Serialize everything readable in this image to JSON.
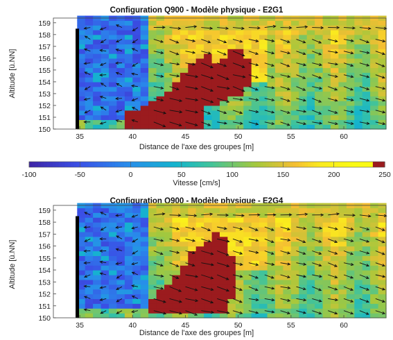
{
  "chart_data": [
    {
      "type": "heatmap",
      "title": "Configuration Q900 - Modèle physique - E2G1",
      "xlabel": "Distance de l'axe des groupes [m]",
      "ylabel": "Altitude [ü.NN]",
      "xlim": [
        32.5,
        64
      ],
      "ylim": [
        150,
        159.4
      ],
      "xticks": [
        35,
        40,
        45,
        50,
        55,
        60
      ],
      "yticks": [
        150,
        151,
        152,
        153,
        154,
        155,
        156,
        157,
        158,
        159
      ],
      "field": "velocity magnitude with flow-direction arrows",
      "wall_x": 34.8,
      "recirculation_zone": {
        "x": [
          35,
          41
        ],
        "y": [
          150,
          159
        ],
        "velocity_range_cm_s": [
          -100,
          0
        ]
      },
      "jet_core": {
        "velocity_cm_s": 250,
        "upper_boundary": [
          [
            39.5,
            150
          ],
          [
            39.5,
            151.5
          ],
          [
            41,
            152
          ],
          [
            43,
            153
          ],
          [
            45,
            154.8
          ],
          [
            46,
            156
          ],
          [
            47,
            156.5
          ],
          [
            48,
            155.5
          ],
          [
            49,
            156.5
          ],
          [
            50,
            157
          ],
          [
            51,
            156
          ],
          [
            51,
            154
          ],
          [
            50.5,
            153
          ],
          [
            49,
            152.5
          ],
          [
            48,
            152
          ],
          [
            46.5,
            152
          ],
          [
            46.5,
            150
          ]
        ]
      },
      "surface_layer_velocity_cm_s": 150,
      "lower_field_velocity_cm_s": 80
    },
    {
      "type": "heatmap",
      "title": "Configuration Q900 - Modèle physique - E2G4",
      "xlabel": "Distance de l'axe des groupes [m]",
      "ylabel": "Altitude [ü.NN]",
      "xlim": [
        32.5,
        64
      ],
      "ylim": [
        150,
        159.4
      ],
      "xticks": [
        35,
        40,
        45,
        50,
        55,
        60
      ],
      "yticks": [
        150,
        151,
        152,
        153,
        154,
        155,
        156,
        157,
        158,
        159
      ],
      "field": "velocity magnitude with flow-direction arrows",
      "wall_x": 34.8,
      "recirculation_zone": {
        "x": [
          35,
          41
        ],
        "y": [
          150,
          159
        ],
        "velocity_range_cm_s": [
          -100,
          0
        ]
      },
      "jet_core": {
        "velocity_cm_s": 250,
        "upper_boundary": [
          [
            41.5,
            150.8
          ],
          [
            42,
            151.8
          ],
          [
            43.5,
            153
          ],
          [
            45,
            154.5
          ],
          [
            46,
            156
          ],
          [
            47,
            156.2
          ],
          [
            48,
            157.5
          ],
          [
            49,
            156.5
          ],
          [
            49.5,
            155
          ],
          [
            49.5,
            152
          ],
          [
            49,
            150.5
          ],
          [
            42,
            150.5
          ]
        ]
      },
      "surface_layer_velocity_cm_s": 150,
      "lower_field_velocity_cm_s": 90
    }
  ],
  "colorbar": {
    "label": "Vitesse [cm/s]",
    "min": -100,
    "max": 250,
    "ticks": [
      -100,
      -50,
      0,
      50,
      100,
      150,
      200,
      250
    ],
    "colormap": "parula"
  }
}
